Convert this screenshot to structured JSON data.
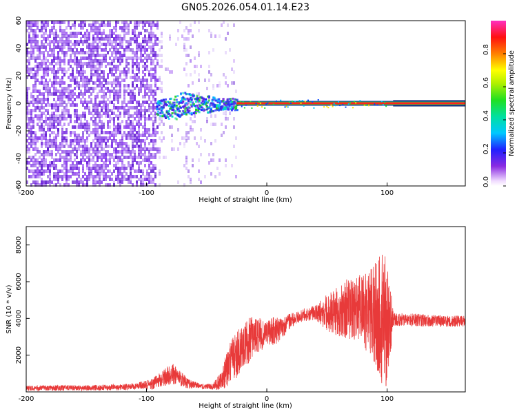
{
  "title": "GN05.2026.054.01.14.E23",
  "colors": {
    "snr_line": "#e83a3a",
    "axis": "#000000",
    "noise_purple": "#7a2ee8",
    "line_red": "#ff2020"
  },
  "chart_data": [
    {
      "type": "heatmap",
      "xlabel": "Height of straight line (km)",
      "ylabel": "Frequency (Hz)",
      "xlim": [
        -200,
        165
      ],
      "ylim": [
        -60,
        60
      ],
      "xticks": [
        -200,
        -100,
        0,
        100
      ],
      "yticks": [
        -60,
        -40,
        -20,
        0,
        20,
        40,
        60
      ],
      "colorbar": {
        "label": "Normalized spectral amplitude",
        "range": [
          0.0,
          1.0
        ],
        "ticks": [
          0.0,
          0.2,
          0.4,
          0.6,
          0.8
        ],
        "tick_labels": [
          "0.0",
          "0.2",
          "0.4",
          "0.6",
          "0.8"
        ]
      },
      "features": {
        "dense_noise_x": [
          -200,
          -90
        ],
        "sparse_noise_x": [
          -90,
          -25
        ],
        "signal_line_x": [
          -25,
          165
        ],
        "signal_line_freq": 0,
        "high_amplitude_x": [
          -25,
          105
        ],
        "low_amplitude_x": [
          105,
          165
        ],
        "onset_cluster_x": [
          -92,
          -25
        ]
      }
    },
    {
      "type": "line",
      "xlabel": "Height of straight line (km)",
      "ylabel": "SNR (10 * v/v)",
      "xlim": [
        -200,
        165
      ],
      "ylim": [
        0,
        9000
      ],
      "xticks": [
        -200,
        -100,
        0,
        100
      ],
      "yticks": [
        2000,
        4000,
        6000,
        8000
      ],
      "envelope": {
        "x": [
          -200,
          -140,
          -110,
          -95,
          -85,
          -78,
          -72,
          -65,
          -55,
          -45,
          -38,
          -32,
          -28,
          -25,
          -20,
          -15,
          -10,
          -5,
          0,
          5,
          10,
          15,
          20,
          25,
          30,
          40,
          50,
          60,
          65,
          70,
          75,
          80,
          85,
          90,
          95,
          98,
          100,
          103,
          105,
          110,
          130,
          150,
          165
        ],
        "mean": [
          200,
          230,
          280,
          420,
          800,
          1000,
          700,
          450,
          300,
          280,
          600,
          1400,
          1900,
          2100,
          2500,
          2800,
          3100,
          3100,
          3200,
          3300,
          3400,
          3600,
          3900,
          4000,
          4200,
          4300,
          4300,
          4400,
          4500,
          4500,
          4600,
          4400,
          4300,
          4300,
          4100,
          3800,
          3600,
          3900,
          4000,
          3950,
          3900,
          3850,
          3850
        ],
        "amp": [
          150,
          150,
          180,
          300,
          500,
          600,
          450,
          250,
          150,
          150,
          500,
          1100,
          1200,
          1400,
          1100,
          1300,
          1000,
          900,
          600,
          800,
          700,
          500,
          400,
          350,
          350,
          400,
          1000,
          1400,
          1600,
          1700,
          1800,
          2000,
          2200,
          2800,
          3500,
          4200,
          3200,
          1800,
          400,
          350,
          350,
          300,
          300
        ]
      }
    }
  ]
}
